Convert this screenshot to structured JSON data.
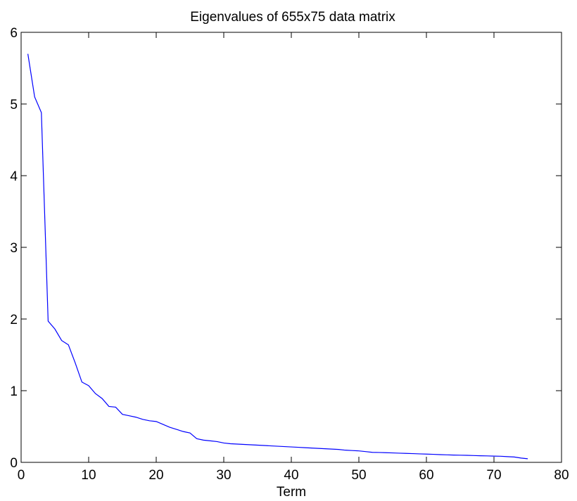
{
  "chart_data": {
    "type": "line",
    "title": "Eigenvalues of 655x75 data matrix",
    "xlabel": "Term",
    "ylabel": "",
    "xlim": [
      0,
      80
    ],
    "ylim": [
      0,
      6
    ],
    "xticks": [
      0,
      10,
      20,
      30,
      40,
      50,
      60,
      70,
      80
    ],
    "yticks": [
      0,
      1,
      2,
      3,
      4,
      5,
      6
    ],
    "grid": false,
    "series": [
      {
        "color": "#0000ff",
        "x": [
          1,
          2,
          3,
          4,
          5,
          6,
          7,
          8,
          9,
          10,
          11,
          12,
          13,
          14,
          15,
          16,
          17,
          18,
          19,
          20,
          21,
          22,
          23,
          24,
          25,
          26,
          27,
          28,
          29,
          30,
          31,
          32,
          33,
          34,
          35,
          36,
          37,
          38,
          39,
          40,
          41,
          42,
          43,
          44,
          45,
          46,
          47,
          48,
          49,
          50,
          51,
          52,
          53,
          54,
          55,
          56,
          57,
          58,
          59,
          60,
          61,
          62,
          63,
          64,
          65,
          66,
          67,
          68,
          69,
          70,
          71,
          72,
          73,
          74,
          75
        ],
        "y": [
          5.7,
          5.1,
          4.88,
          1.97,
          1.86,
          1.7,
          1.64,
          1.39,
          1.12,
          1.07,
          0.96,
          0.89,
          0.78,
          0.77,
          0.67,
          0.65,
          0.63,
          0.6,
          0.58,
          0.57,
          0.53,
          0.49,
          0.46,
          0.43,
          0.41,
          0.33,
          0.31,
          0.3,
          0.29,
          0.27,
          0.26,
          0.255,
          0.25,
          0.245,
          0.24,
          0.235,
          0.23,
          0.225,
          0.22,
          0.215,
          0.21,
          0.205,
          0.2,
          0.195,
          0.19,
          0.185,
          0.18,
          0.17,
          0.165,
          0.16,
          0.15,
          0.14,
          0.138,
          0.135,
          0.132,
          0.128,
          0.125,
          0.122,
          0.118,
          0.115,
          0.112,
          0.108,
          0.105,
          0.102,
          0.1,
          0.098,
          0.095,
          0.092,
          0.09,
          0.087,
          0.085,
          0.08,
          0.075,
          0.06,
          0.05
        ]
      }
    ]
  }
}
